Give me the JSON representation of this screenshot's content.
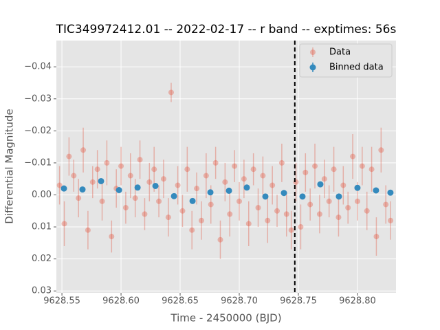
{
  "chart_data": {
    "type": "scatter",
    "title": "TIC349972412.01 -- 2022-02-17 -- r band -- exptimes: 56s",
    "xlabel": "Time - 2450000 (BJD)",
    "ylabel": "Differential Magnitude",
    "xlim": [
      9628.5453,
      9628.8326
    ],
    "ylim": [
      0.0306,
      -0.0482
    ],
    "xticks": [
      9628.55,
      {
        "value": 9628.6,
        "label": "9628.60"
      },
      9628.65,
      {
        "value": 9628.7,
        "label": "9628.70"
      },
      9628.75,
      {
        "value": 9628.8,
        "label": "9628.80"
      }
    ],
    "yticks": [
      {
        "value": -0.04,
        "label": "−0.04"
      },
      {
        "value": -0.03,
        "label": "−0.03"
      },
      {
        "value": -0.02,
        "label": "−0.02"
      },
      {
        "value": -0.01,
        "label": "−0.01"
      },
      {
        "value": 0,
        "label": "0.00"
      },
      0.01,
      0.02,
      0.03
    ],
    "grid": true,
    "legend": "upper right",
    "vline": 9628.747,
    "series": [
      {
        "name": "Data",
        "color": "#E24A33",
        "x": [
          9628.548,
          9628.552,
          9628.556,
          9628.56,
          9628.564,
          9628.568,
          9628.572,
          9628.576,
          9628.58,
          9628.584,
          9628.588,
          9628.592,
          9628.596,
          9628.6,
          9628.604,
          9628.608,
          9628.612,
          9628.616,
          9628.62,
          9628.624,
          9628.628,
          9628.632,
          9628.636,
          9628.64,
          9628.6424,
          9628.648,
          9628.652,
          9628.656,
          9628.66,
          9628.664,
          9628.668,
          9628.672,
          9628.676,
          9628.68,
          9628.684,
          9628.688,
          9628.692,
          9628.696,
          9628.7,
          9628.704,
          9628.708,
          9628.712,
          9628.716,
          9628.72,
          9628.724,
          9628.728,
          9628.732,
          9628.736,
          9628.74,
          9628.744,
          9628.748,
          9628.752,
          9628.756,
          9628.76,
          9628.764,
          9628.768,
          9628.772,
          9628.776,
          9628.78,
          9628.784,
          9628.788,
          9628.792,
          9628.796,
          9628.8,
          9628.804,
          9628.808,
          9628.812,
          9628.816,
          9628.82,
          9628.824,
          9628.828
        ],
        "values": [
          -0.003,
          0.009,
          -0.012,
          -0.006,
          0.001,
          -0.014,
          0.011,
          -0.004,
          -0.008,
          0.002,
          -0.01,
          0.013,
          -0.002,
          -0.009,
          0.004,
          -0.006,
          0.001,
          -0.011,
          0.006,
          -0.004,
          -0.008,
          0.002,
          -0.005,
          0.007,
          -0.032,
          -0.003,
          0.005,
          -0.008,
          0.011,
          -0.002,
          0.008,
          -0.006,
          0.003,
          -0.01,
          0.014,
          -0.004,
          0.006,
          -0.009,
          0.002,
          -0.005,
          0.009,
          -0.008,
          0.004,
          -0.006,
          0.008,
          -0.003,
          0.005,
          -0.01,
          0.006,
          0.011,
          -0.004,
          0.01,
          -0.007,
          0.003,
          -0.009,
          0.006,
          -0.005,
          0.002,
          -0.008,
          0.007,
          -0.003,
          0.004,
          -0.012,
          0.002,
          -0.009,
          0.005,
          -0.008,
          0.013,
          -0.014,
          0.003,
          0.008
        ],
        "errors": [
          0.006,
          0.007,
          0.006,
          0.005,
          0.006,
          0.007,
          0.006,
          0.005,
          0.006,
          0.006,
          0.007,
          0.005,
          0.006,
          0.006,
          0.005,
          0.007,
          0.006,
          0.006,
          0.005,
          0.006,
          0.007,
          0.005,
          0.006,
          0.006,
          0.003,
          0.006,
          0.005,
          0.007,
          0.006,
          0.005,
          0.006,
          0.007,
          0.006,
          0.005,
          0.006,
          0.006,
          0.007,
          0.005,
          0.006,
          0.006,
          0.007,
          0.005,
          0.006,
          0.006,
          0.007,
          0.006,
          0.005,
          0.006,
          0.007,
          0.006,
          0.006,
          0.007,
          0.006,
          0.005,
          0.007,
          0.006,
          0.006,
          0.005,
          0.007,
          0.006,
          0.006,
          0.005,
          0.007,
          0.006,
          0.006,
          0.006,
          0.007,
          0.006,
          0.007,
          0.006,
          0.006
        ]
      },
      {
        "name": "Binned data",
        "color": "#348ABD",
        "x": [
          9628.5517,
          9628.5674,
          9628.5831,
          9628.5983,
          9628.614,
          9628.6291,
          9628.6448,
          9628.6605,
          9628.6756,
          9628.6913,
          9628.7064,
          9628.7221,
          9628.7378,
          9628.7535,
          9628.7686,
          9628.7843,
          9628.8,
          9628.8157,
          9628.8279
        ],
        "values": [
          -0.002,
          -0.0017,
          -0.0043,
          -0.0015,
          -0.0023,
          -0.0028,
          0.0004,
          0.0019,
          -0.0008,
          -0.0013,
          -0.0023,
          0.0005,
          -0.0006,
          0.0005,
          -0.0033,
          0.0005,
          -0.0022,
          -0.0014,
          -0.0007
        ],
        "errors": [
          0.0007,
          0.0007,
          0.0007,
          0.0007,
          0.0007,
          0.0007,
          0.0007,
          0.0007,
          0.0007,
          0.0007,
          0.0007,
          0.0007,
          0.0007,
          0.0007,
          0.0007,
          0.0007,
          0.0007,
          0.0007,
          0.0007
        ]
      }
    ]
  }
}
